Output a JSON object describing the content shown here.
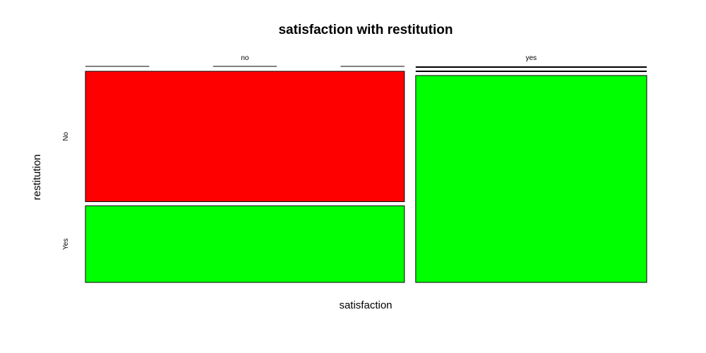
{
  "chart_data": {
    "type": "mosaic",
    "title": "satisfaction with restitution",
    "xlabel": "satisfaction",
    "ylabel": "restitution",
    "x_categories": [
      "no",
      "yes"
    ],
    "y_categories": [
      "No",
      "Yes"
    ],
    "x_proportions": [
      0.58,
      0.42
    ],
    "cells": [
      {
        "x": "no",
        "y": "No",
        "proportion": 0.63,
        "color": "#ff0000"
      },
      {
        "x": "no",
        "y": "Yes",
        "proportion": 0.37,
        "color": "#00ff00"
      },
      {
        "x": "yes",
        "y": "No",
        "proportion": 1.0,
        "color": "#00ff00"
      },
      {
        "x": "yes",
        "y": "Yes",
        "proportion": 0.0,
        "color": "#00ff00"
      }
    ]
  }
}
